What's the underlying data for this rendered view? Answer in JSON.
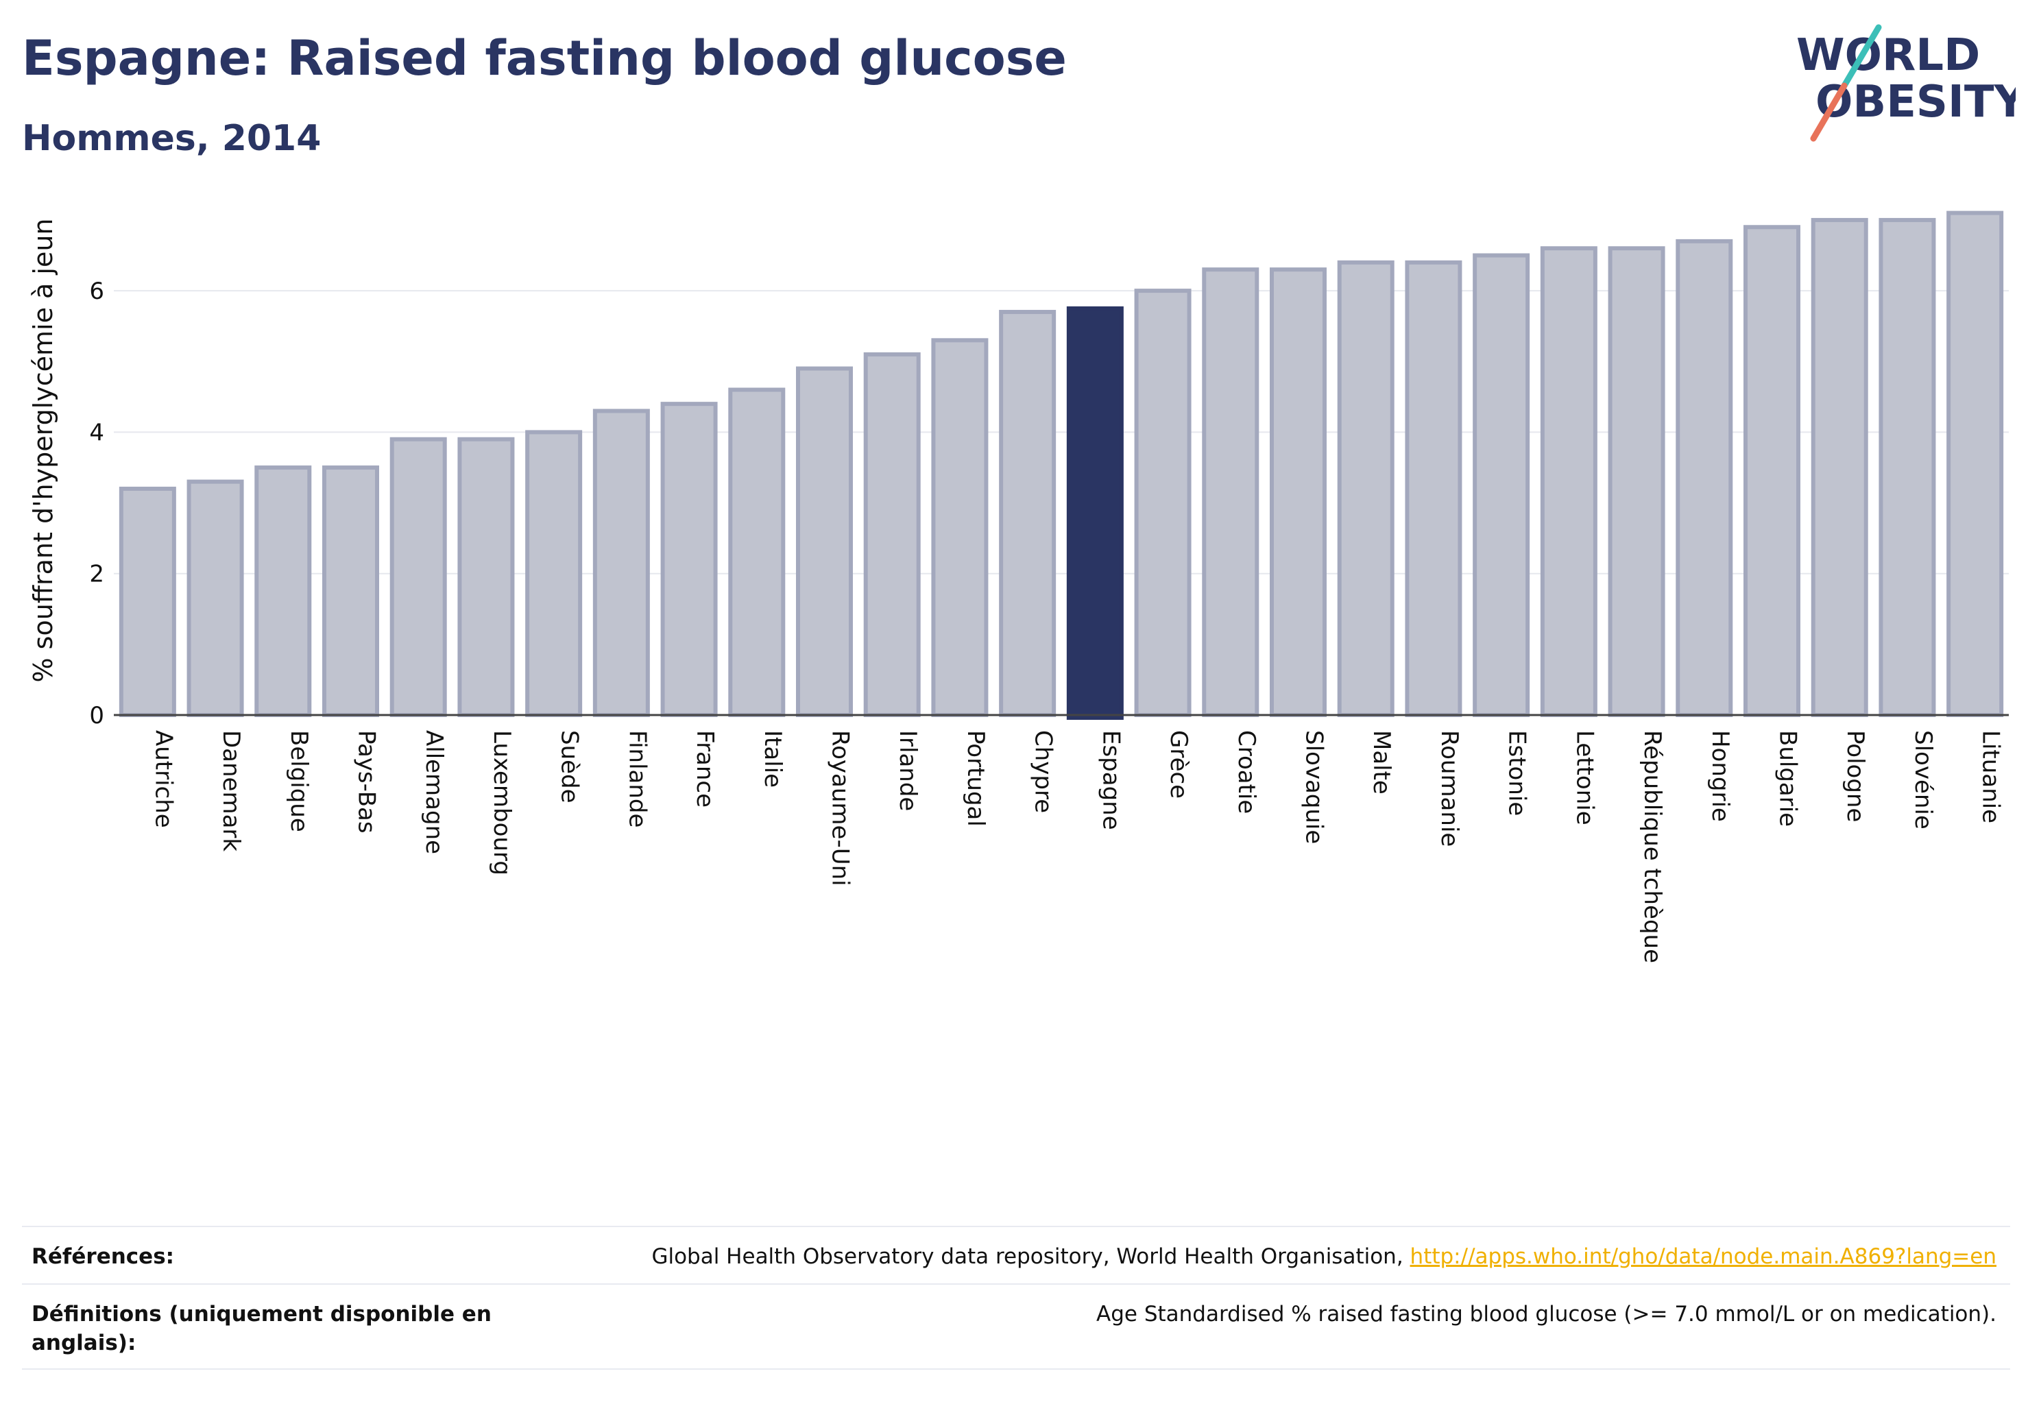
{
  "header": {
    "title": "Espagne: Raised fasting blood glucose",
    "subtitle": "Hommes, 2014"
  },
  "logo": {
    "line1": "WORLD",
    "line2": "OBESITY",
    "colors": {
      "text": "#2a3563",
      "slash_top": "#3cbfb8",
      "slash_bottom": "#e8735a"
    }
  },
  "chart_data": {
    "type": "bar",
    "ylabel": "% souffrant d'hyperglycémie à jeun",
    "ylim": [
      0,
      7.3
    ],
    "yticks": [
      0,
      2,
      4,
      6
    ],
    "grid": true,
    "highlight": "Espagne",
    "colors": {
      "bar": "#c0c3cf",
      "bar_edge": "#a3a8bd",
      "highlight": "#2a3563"
    },
    "categories": [
      "Autriche",
      "Danemark",
      "Belgique",
      "Pays-Bas",
      "Allemagne",
      "Luxembourg",
      "Suède",
      "Finlande",
      "France",
      "Italie",
      "Royaume-Uni",
      "Irlande",
      "Portugal",
      "Chypre",
      "Espagne",
      "Grèce",
      "Croatie",
      "Slovaquie",
      "Malte",
      "Roumanie",
      "Estonie",
      "Lettonie",
      "République tchèque",
      "Hongrie",
      "Bulgarie",
      "Pologne",
      "Slovénie",
      "Lituanie"
    ],
    "values": [
      3.2,
      3.3,
      3.5,
      3.5,
      3.9,
      3.9,
      4.0,
      4.3,
      4.4,
      4.6,
      4.9,
      5.1,
      5.3,
      5.7,
      5.75,
      6.0,
      6.3,
      6.3,
      6.4,
      6.4,
      6.5,
      6.6,
      6.6,
      6.7,
      6.9,
      7.0,
      7.0,
      7.1
    ]
  },
  "footer": {
    "references_label": "Références:",
    "references_text": "Global Health Observatory data repository, World Health Organisation, ",
    "references_link": "http://apps.who.int/gho/data/node.main.A869?lang=en",
    "definitions_label": "Définitions (uniquement disponible en anglais):",
    "definitions_text": "Age Standardised % raised fasting blood glucose (>= 7.0 mmol/L or on medication)."
  }
}
